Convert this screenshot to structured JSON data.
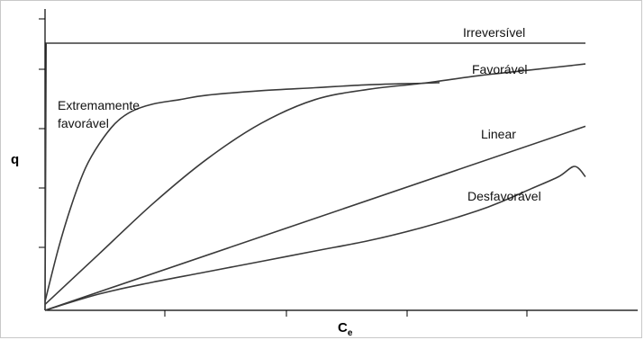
{
  "chart_data": {
    "type": "line",
    "title": "",
    "xlabel": "C",
    "xlabel_subscript": "e",
    "ylabel": "q",
    "xlim": [
      0,
      10
    ],
    "ylim": [
      0,
      10
    ],
    "grid": false,
    "series": [
      {
        "name": "Irreversível",
        "x": [
          0,
          0.02,
          10
        ],
        "y": [
          0,
          9.0,
          9.0
        ]
      },
      {
        "name": "Favorável",
        "x": [
          0,
          1,
          2,
          3,
          4,
          5,
          6,
          7,
          8,
          9,
          10
        ],
        "y": [
          0.2,
          1.9,
          3.6,
          5.1,
          6.3,
          7.1,
          7.45,
          7.65,
          7.9,
          8.1,
          8.3
        ]
      },
      {
        "name": "Extremamente favorável",
        "x": [
          0,
          0.25,
          0.5,
          0.75,
          1,
          1.3,
          1.6,
          2,
          2.5,
          3,
          4,
          5,
          6,
          7,
          7.3
        ],
        "y": [
          0.3,
          2.1,
          3.6,
          4.8,
          5.6,
          6.3,
          6.7,
          6.95,
          7.1,
          7.25,
          7.4,
          7.5,
          7.6,
          7.65,
          7.67
        ]
      },
      {
        "name": "Linear",
        "x": [
          0,
          10
        ],
        "y": [
          0,
          6.2
        ]
      },
      {
        "name": "Desfavorável",
        "x": [
          0,
          1,
          2,
          3,
          4,
          5,
          6,
          7,
          8,
          8.5,
          9,
          9.5,
          9.8,
          10
        ],
        "y": [
          0,
          0.55,
          0.95,
          1.3,
          1.65,
          2.0,
          2.35,
          2.8,
          3.35,
          3.7,
          4.1,
          4.5,
          4.85,
          4.5
        ]
      }
    ]
  },
  "labels": {
    "irreversivel": "Irreversível",
    "favoravel": "Favorável",
    "extremamente_1": "Extremamente",
    "extremamente_2": "favorável",
    "linear": "Linear",
    "desfavoravel": "Desfavorável"
  }
}
